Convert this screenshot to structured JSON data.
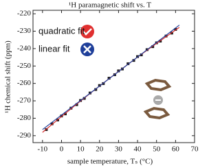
{
  "chart_data": {
    "type": "scatter",
    "title": "¹H paramagnetic shift vs. T",
    "x_label": "sample temperature, Tₛ (°C)",
    "y_label": "¹H chemical shift (ppm)",
    "xlim": [
      -15,
      70
    ],
    "ylim": [
      -294,
      -218
    ],
    "xticks": [
      -10,
      0,
      10,
      20,
      30,
      40,
      50,
      60,
      70
    ],
    "yticks": [
      -220,
      -230,
      -240,
      -250,
      -260,
      -270,
      -280,
      -290
    ],
    "series": [
      {
        "mode": "markers",
        "color": "#1a1a1a",
        "x": [
          -8,
          -5,
          -2,
          0,
          2,
          5,
          8,
          10,
          12,
          15,
          18,
          20,
          22,
          25,
          28,
          30,
          32,
          35,
          38,
          40,
          42,
          45,
          48,
          50,
          52,
          55,
          58,
          60
        ],
        "values": [
          -286.5,
          -283.2,
          -281.0,
          -278.7,
          -277.5,
          -274.2,
          -272.2,
          -269.8,
          -268.6,
          -265.5,
          -263.5,
          -261.2,
          -260.1,
          -257.0,
          -255.0,
          -252.8,
          -251.7,
          -248.7,
          -246.8,
          -244.6,
          -243.6,
          -240.6,
          -238.9,
          -236.7,
          -235.7,
          -232.8,
          -231.1,
          -229.0
        ]
      },
      {
        "name": "quadratic fit",
        "mode": "line",
        "color": "#d42a2a",
        "x": [
          -10,
          0,
          10,
          20,
          30,
          40,
          50,
          62
        ],
        "values": [
          -288.1,
          -279.0,
          -270.1,
          -261.5,
          -253.1,
          -244.9,
          -237.0,
          -227.8
        ]
      },
      {
        "name": "linear fit",
        "mode": "line",
        "color": "#1f3f9a",
        "x": [
          -10,
          62
        ],
        "values": [
          -286.5,
          -226.5
        ]
      }
    ]
  }
}
